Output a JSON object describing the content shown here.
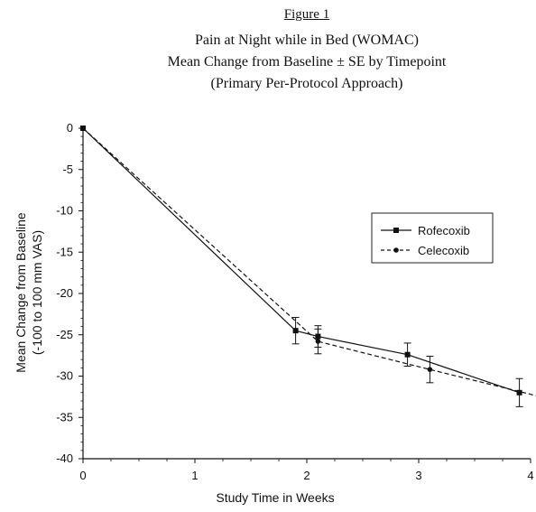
{
  "figure_label": "Figure 1",
  "chart_data": {
    "type": "line",
    "title": "Pain at Night while in Bed (WOMAC)",
    "subtitle": "Mean Change from Baseline ± SE by Timepoint",
    "subtitle2": "(Primary Per-Protocol Approach)",
    "xlabel": "Study Time in Weeks",
    "ylabel": "Mean Change from Baseline",
    "ylabel2": "(-100 to 100 mm VAS)",
    "xlim": [
      0,
      4
    ],
    "ylim": [
      -40,
      0
    ],
    "x_ticks": [
      0,
      1,
      2,
      3,
      4
    ],
    "y_ticks": [
      0,
      -5,
      -10,
      -15,
      -20,
      -25,
      -30,
      -35,
      -40
    ],
    "grid": false,
    "legend_position": "right",
    "series": [
      {
        "name": "Rofecoxib",
        "style": "solid",
        "marker": "square",
        "x": [
          0,
          1.9,
          2.1,
          2.9,
          3.9
        ],
        "y": [
          0,
          -24.5,
          -25.2,
          -27.4,
          -32
        ],
        "se": [
          0,
          1.6,
          1.3,
          1.4,
          1.7
        ]
      },
      {
        "name": "Celecoxib",
        "style": "dashed",
        "marker": "circle",
        "x": [
          0,
          2.1,
          3.1,
          4.15
        ],
        "y": [
          0,
          -25.8,
          -29.2,
          -32.7
        ],
        "se": [
          0,
          1.5,
          1.6,
          1.5
        ]
      }
    ]
  }
}
